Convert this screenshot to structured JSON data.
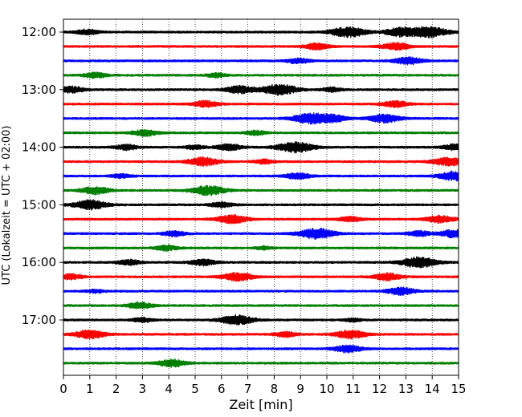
{
  "chart_data": {
    "type": "line",
    "title": "",
    "xlabel": "Zeit  [min]",
    "ylabel": "UTC (Lokalzeit = UTC + 02:00)",
    "xlim": [
      0,
      15
    ],
    "x_ticks": [
      "0",
      "1",
      "2",
      "3",
      "4",
      "5",
      "6",
      "7",
      "8",
      "9",
      "10",
      "11",
      "12",
      "13",
      "14",
      "15"
    ],
    "y_ticks": [
      "12:00",
      "13:00",
      "14:00",
      "15:00",
      "16:00",
      "17:00"
    ],
    "grid": "vertical dotted lines at each minute",
    "trace_interval_minutes": 15,
    "colors": [
      "#000000",
      "#ff0000",
      "#0000ff",
      "#008000"
    ],
    "series": [
      {
        "start": "12:00",
        "color": "#000000",
        "events": [
          [
            0.9,
            0.5
          ],
          [
            10.8,
            1.0
          ],
          [
            12.8,
            0.8
          ],
          [
            13.9,
            1.0
          ]
        ]
      },
      {
        "start": "12:15",
        "color": "#ff0000",
        "events": [
          [
            9.6,
            0.6
          ],
          [
            12.6,
            0.7
          ]
        ]
      },
      {
        "start": "12:30",
        "color": "#0000ff",
        "events": [
          [
            8.9,
            0.5
          ],
          [
            13.1,
            0.7
          ]
        ]
      },
      {
        "start": "12:45",
        "color": "#008000",
        "events": [
          [
            1.2,
            0.5
          ],
          [
            5.8,
            0.4
          ]
        ]
      },
      {
        "start": "13:00",
        "color": "#000000",
        "events": [
          [
            0.3,
            0.6
          ],
          [
            6.7,
            0.7
          ],
          [
            8.2,
            1.0
          ],
          [
            10.2,
            0.4
          ]
        ]
      },
      {
        "start": "13:15",
        "color": "#ff0000",
        "events": [
          [
            5.4,
            0.6
          ],
          [
            12.6,
            0.6
          ]
        ]
      },
      {
        "start": "13:30",
        "color": "#0000ff",
        "events": [
          [
            9.4,
            1.0
          ],
          [
            10.3,
            0.6
          ],
          [
            12.2,
            0.8
          ]
        ]
      },
      {
        "start": "13:45",
        "color": "#008000",
        "events": [
          [
            3.1,
            0.6
          ],
          [
            7.3,
            0.4
          ]
        ]
      },
      {
        "start": "14:00",
        "color": "#000000",
        "events": [
          [
            2.4,
            0.5
          ],
          [
            5.0,
            0.4
          ],
          [
            6.3,
            0.6
          ],
          [
            8.8,
            1.0
          ],
          [
            14.9,
            0.6
          ]
        ]
      },
      {
        "start": "14:15",
        "color": "#ff0000",
        "events": [
          [
            5.3,
            0.8
          ],
          [
            7.6,
            0.4
          ],
          [
            14.6,
            0.8
          ]
        ]
      },
      {
        "start": "14:30",
        "color": "#0000ff",
        "events": [
          [
            2.2,
            0.4
          ],
          [
            8.9,
            0.6
          ],
          [
            14.9,
            0.9
          ]
        ]
      },
      {
        "start": "14:45",
        "color": "#008000",
        "events": [
          [
            1.2,
            0.7
          ],
          [
            5.5,
            0.9
          ]
        ]
      },
      {
        "start": "15:00",
        "color": "#000000",
        "events": [
          [
            1.0,
            0.9
          ],
          [
            6.0,
            0.5
          ]
        ]
      },
      {
        "start": "15:15",
        "color": "#ff0000",
        "events": [
          [
            6.4,
            0.8
          ],
          [
            10.9,
            0.5
          ],
          [
            14.3,
            0.7
          ]
        ]
      },
      {
        "start": "15:30",
        "color": "#0000ff",
        "events": [
          [
            4.2,
            0.5
          ],
          [
            9.6,
            1.0
          ],
          [
            13.5,
            0.5
          ],
          [
            14.8,
            0.7
          ]
        ]
      },
      {
        "start": "15:45",
        "color": "#008000",
        "events": [
          [
            3.9,
            0.5
          ],
          [
            7.6,
            0.3
          ]
        ]
      },
      {
        "start": "16:00",
        "color": "#000000",
        "events": [
          [
            2.5,
            0.5
          ],
          [
            5.3,
            0.6
          ],
          [
            13.5,
            1.0
          ]
        ]
      },
      {
        "start": "16:15",
        "color": "#ff0000",
        "events": [
          [
            0.3,
            0.5
          ],
          [
            6.6,
            0.8
          ],
          [
            12.3,
            0.7
          ]
        ]
      },
      {
        "start": "16:30",
        "color": "#0000ff",
        "events": [
          [
            1.2,
            0.3
          ],
          [
            12.8,
            0.7
          ]
        ]
      },
      {
        "start": "16:45",
        "color": "#008000",
        "events": [
          [
            2.9,
            0.6
          ]
        ]
      },
      {
        "start": "17:00",
        "color": "#000000",
        "events": [
          [
            3.0,
            0.4
          ],
          [
            6.6,
            0.9
          ],
          [
            11.0,
            0.3
          ]
        ]
      },
      {
        "start": "17:15",
        "color": "#ff0000",
        "events": [
          [
            1.0,
            0.8
          ],
          [
            8.4,
            0.5
          ],
          [
            10.9,
            0.8
          ]
        ]
      },
      {
        "start": "17:30",
        "color": "#0000ff",
        "events": [
          [
            10.8,
            0.7
          ]
        ]
      },
      {
        "start": "17:45",
        "color": "#008000",
        "events": [
          [
            4.1,
            0.7
          ]
        ]
      }
    ]
  }
}
